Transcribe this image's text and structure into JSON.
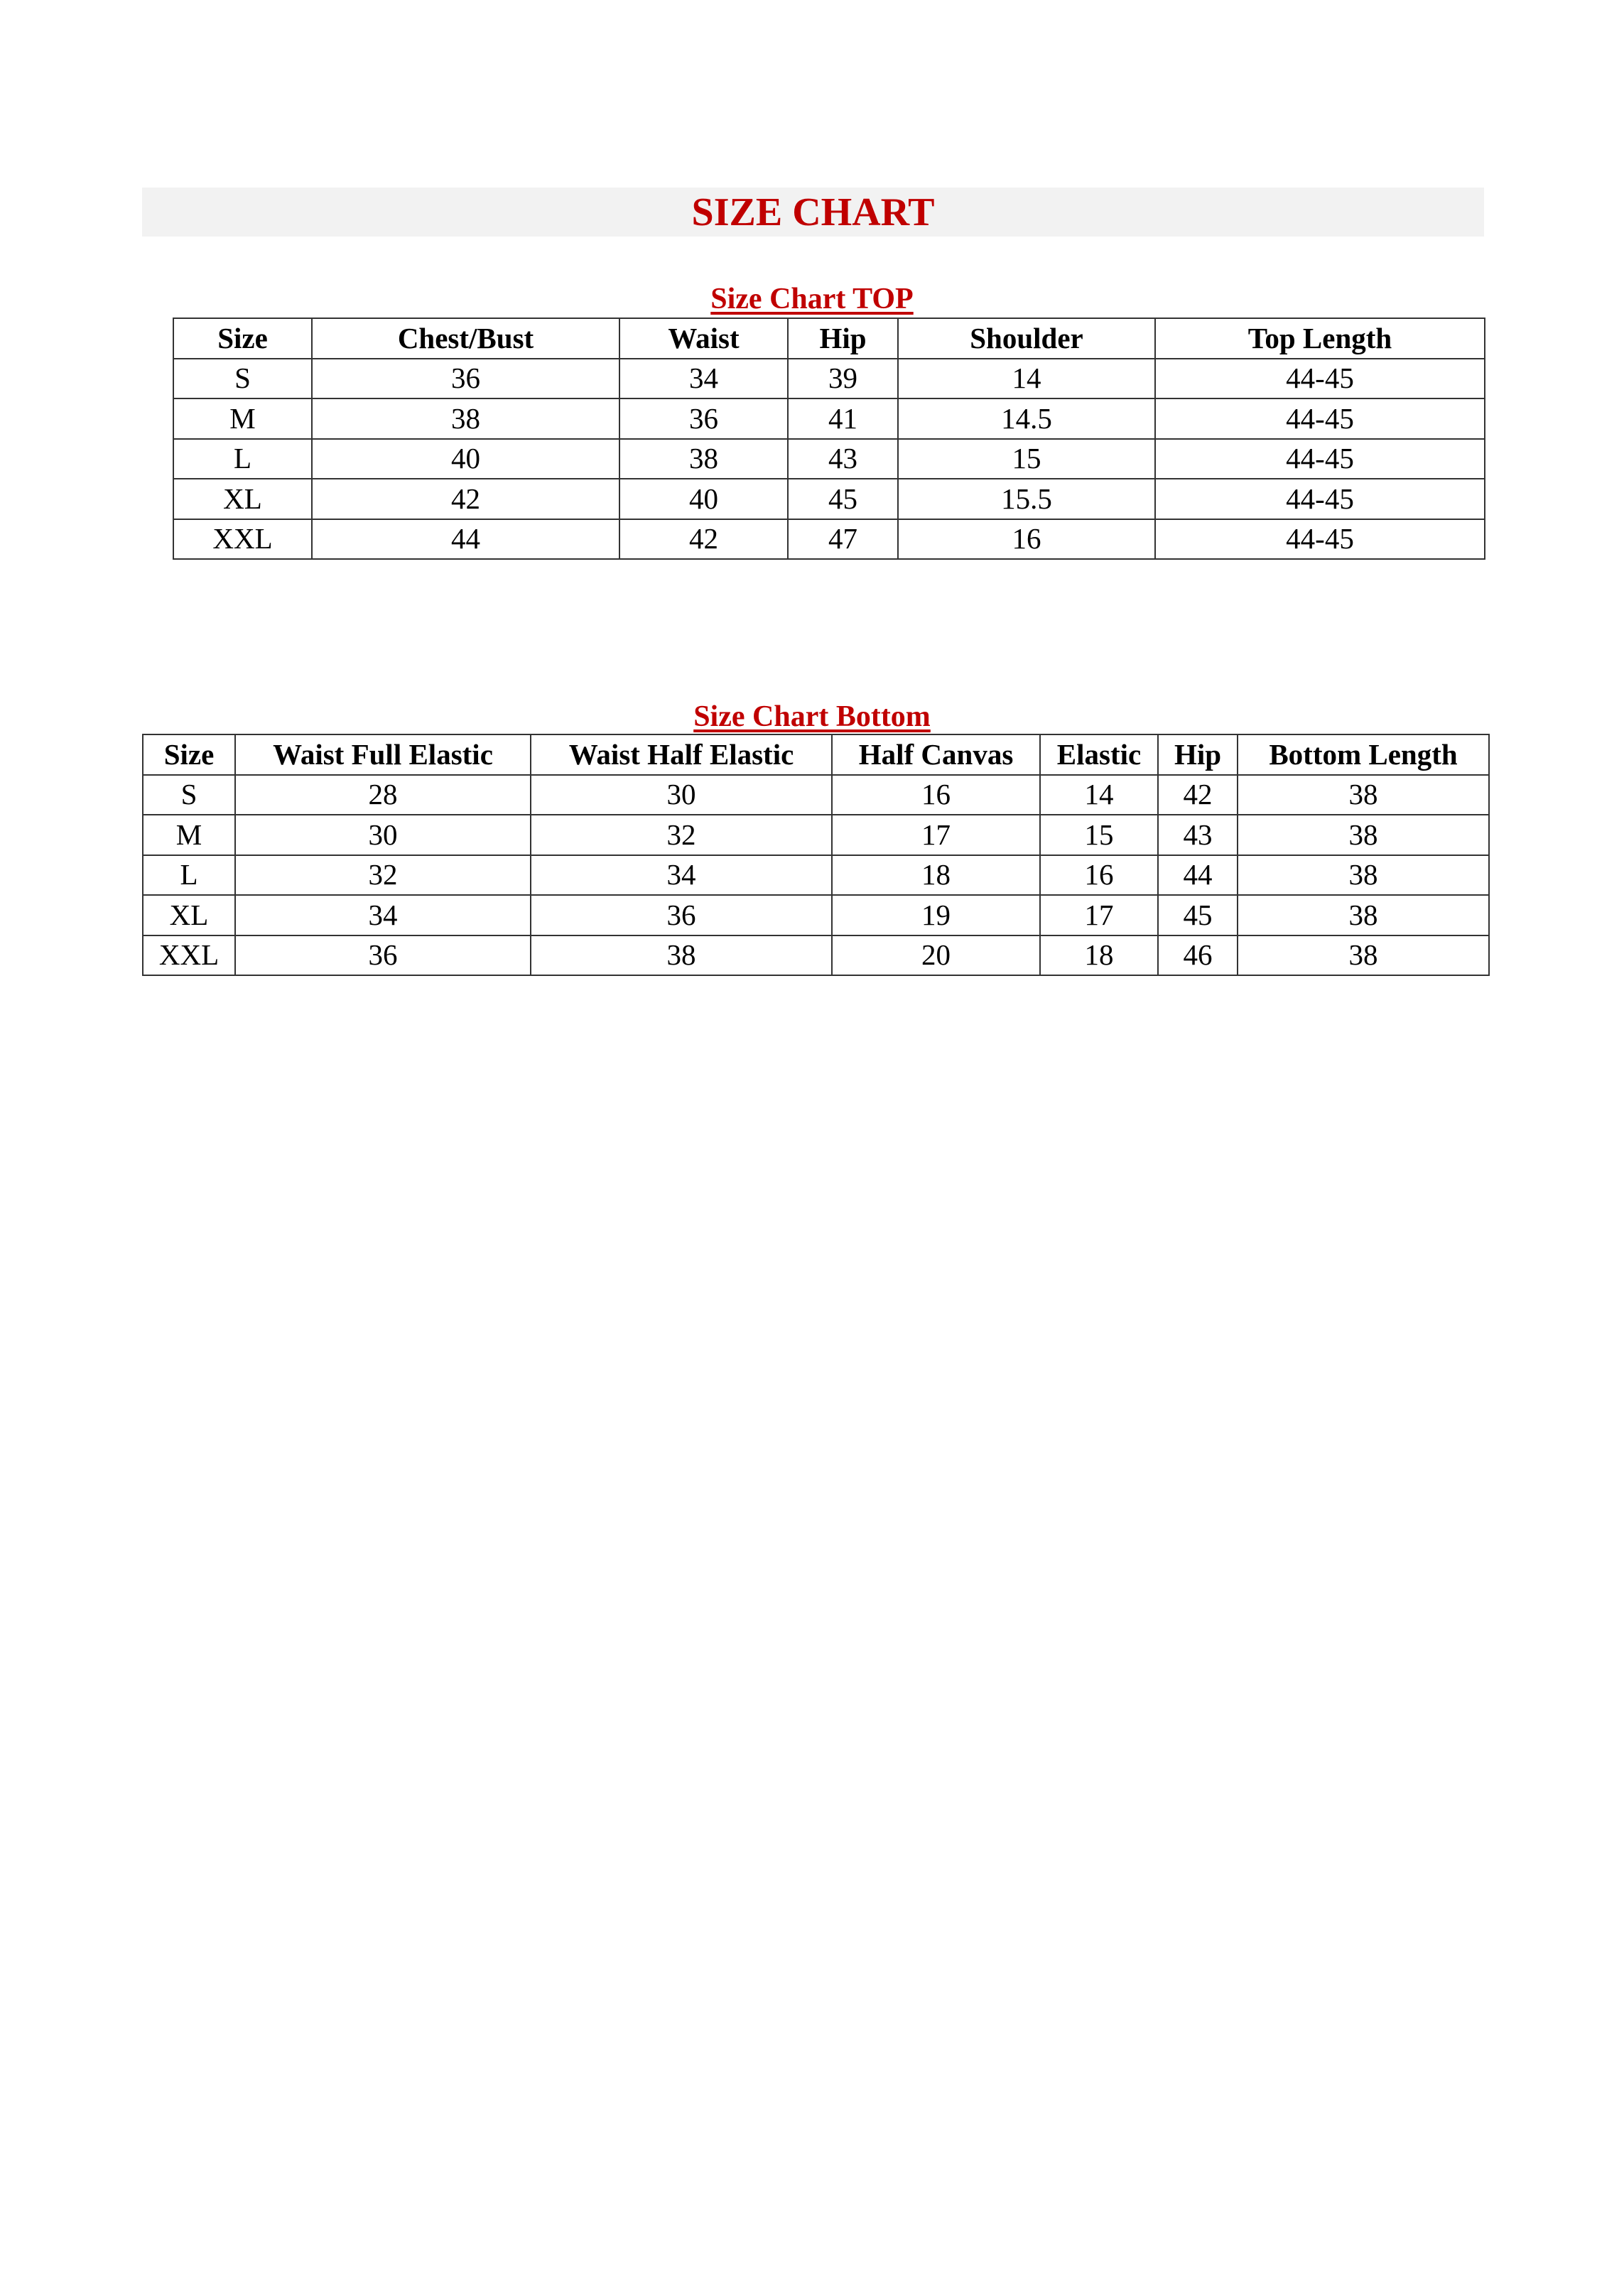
{
  "title": "SIZE CHART",
  "accent_color": "#c00000",
  "top_chart": {
    "heading": "Size Chart TOP",
    "columns": [
      "Size",
      "Chest/Bust",
      "Waist",
      "Hip",
      "Shoulder",
      "Top Length"
    ],
    "rows": [
      [
        "S",
        "36",
        "34",
        "39",
        "14",
        "44-45"
      ],
      [
        "M",
        "38",
        "36",
        "41",
        "14.5",
        "44-45"
      ],
      [
        "L",
        "40",
        "38",
        "43",
        "15",
        "44-45"
      ],
      [
        "XL",
        "42",
        "40",
        "45",
        "15.5",
        "44-45"
      ],
      [
        "XXL",
        "44",
        "42",
        "47",
        "16",
        "44-45"
      ]
    ]
  },
  "bottom_chart": {
    "heading": "Size Chart Bottom",
    "columns": [
      "Size",
      "Waist Full Elastic",
      "Waist Half Elastic",
      "Half Canvas",
      "Elastic",
      "Hip",
      "Bottom Length"
    ],
    "rows": [
      [
        "S",
        "28",
        "30",
        "16",
        "14",
        "42",
        "38"
      ],
      [
        "M",
        "30",
        "32",
        "17",
        "15",
        "43",
        "38"
      ],
      [
        "L",
        "32",
        "34",
        "18",
        "16",
        "44",
        "38"
      ],
      [
        "XL",
        "34",
        "36",
        "19",
        "17",
        "45",
        "38"
      ],
      [
        "XXL",
        "36",
        "38",
        "20",
        "18",
        "46",
        "38"
      ]
    ]
  }
}
